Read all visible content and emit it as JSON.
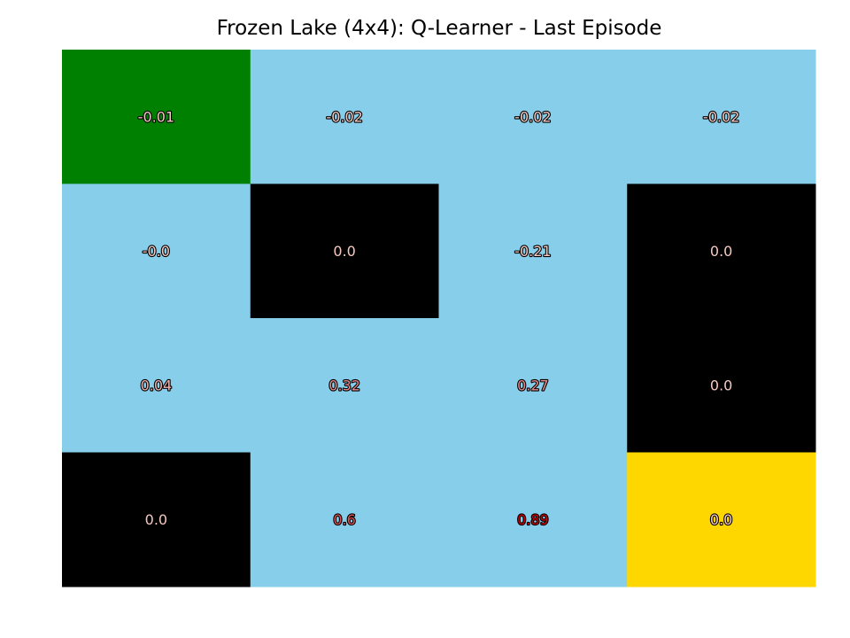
{
  "chart_data": {
    "type": "heatmap",
    "title": "Frozen Lake (4x4): Q-Learner - Last Episode",
    "rows": 4,
    "cols": 4,
    "values": [
      [
        -0.01,
        -0.02,
        -0.02,
        -0.02
      ],
      [
        -0.0,
        0.0,
        -0.21,
        0.0
      ],
      [
        0.04,
        0.32,
        0.27,
        0.0
      ],
      [
        0.0,
        0.6,
        0.89,
        0.0
      ]
    ],
    "labels": [
      [
        "-0.01",
        "-0.02",
        "-0.02",
        "-0.02"
      ],
      [
        "-0.0",
        "0.0",
        "-0.21",
        "0.0"
      ],
      [
        "0.04",
        "0.32",
        "0.27",
        "0.0"
      ],
      [
        "0.0",
        "0.6",
        "0.89",
        "0.0"
      ]
    ],
    "tiles": [
      [
        "start",
        "frozen",
        "frozen",
        "frozen"
      ],
      [
        "frozen",
        "hole",
        "frozen",
        "hole"
      ],
      [
        "frozen",
        "frozen",
        "frozen",
        "hole"
      ],
      [
        "hole",
        "frozen",
        "frozen",
        "goal"
      ]
    ],
    "tile_colors": {
      "start": "#008000",
      "frozen": "#87CEEB",
      "hole": "#000000",
      "goal": "#FFD700"
    },
    "grid": false,
    "axes_visible": false
  }
}
